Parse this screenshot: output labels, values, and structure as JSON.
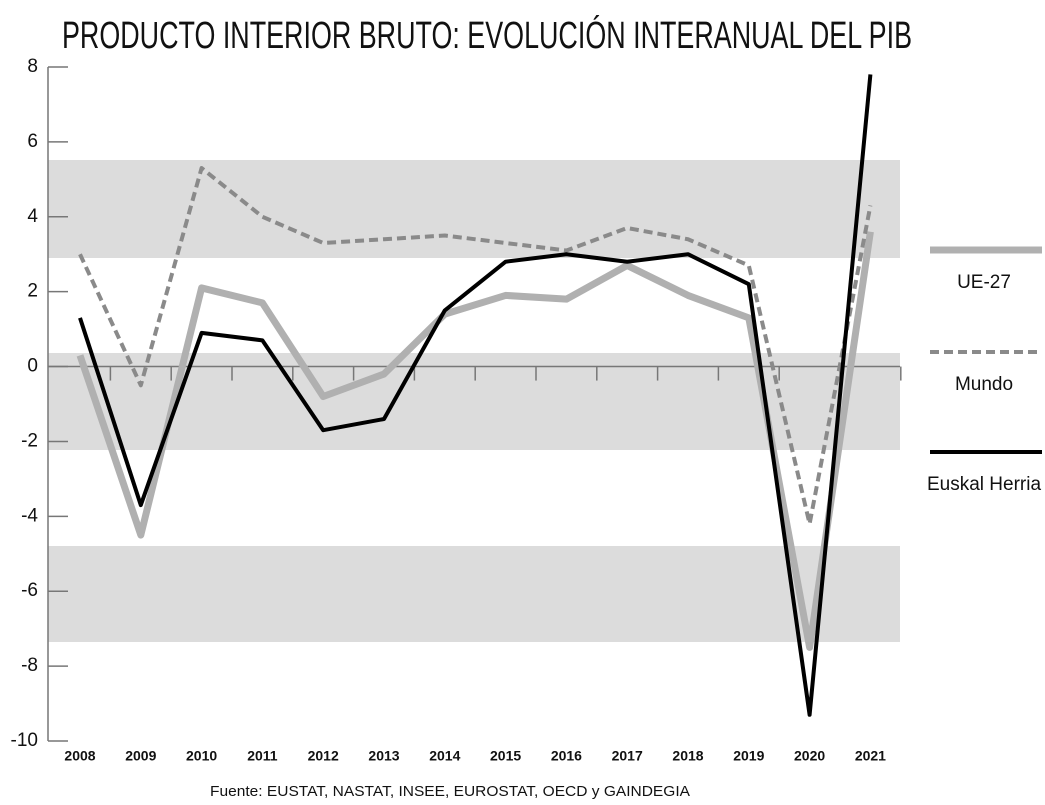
{
  "chart_data": {
    "type": "line",
    "title": "PRODUCTO INTERIOR BRUTO: EVOLUCIÓN INTERANUAL DEL PIB",
    "source": "Fuente: EUSTAT, NASTAT, INSEE, EUROSTAT, OECD y GAINDEGIA",
    "categories": [
      "2008",
      "2009",
      "2010",
      "2011",
      "2012",
      "2013",
      "2014",
      "2015",
      "2016",
      "2017",
      "2018",
      "2019",
      "2020",
      "2021"
    ],
    "series": [
      {
        "name": "UE-27",
        "color": "#b0b0b0",
        "values": [
          0.3,
          -4.5,
          2.1,
          1.7,
          -0.8,
          -0.2,
          1.4,
          1.9,
          1.8,
          2.7,
          1.9,
          1.3,
          -7.5,
          3.6
        ]
      },
      {
        "name": "Mundo",
        "color": "#8a8a8a",
        "values": [
          3.0,
          -0.5,
          5.3,
          4.0,
          3.3,
          3.4,
          3.5,
          3.3,
          3.1,
          3.7,
          3.4,
          2.7,
          -4.2,
          4.3
        ]
      },
      {
        "name": "Euskal Herria",
        "color": "#000000",
        "values": [
          1.3,
          -3.7,
          0.9,
          0.7,
          -1.7,
          -1.4,
          1.5,
          2.8,
          3.0,
          2.8,
          3.0,
          2.2,
          -9.3,
          7.8
        ]
      }
    ],
    "ylim": [
      -10,
      8
    ],
    "yticks": [
      -10,
      -8,
      -6,
      -4,
      -2,
      0,
      2,
      4,
      6,
      8
    ]
  }
}
